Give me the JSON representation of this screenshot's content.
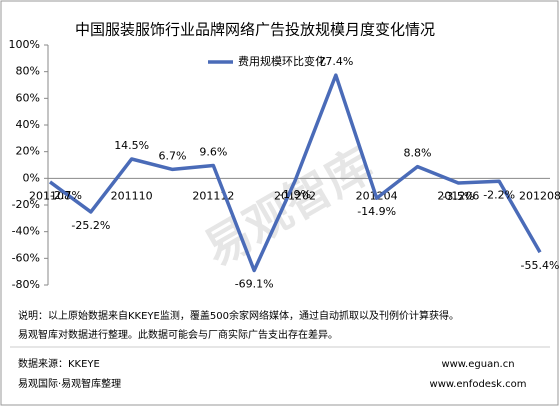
{
  "chart_data": {
    "type": "line",
    "title": "中国服装服饰行业品牌网络广告投放规模月度变化情况",
    "categories": [
      "201108",
      null,
      "201110",
      null,
      "201112",
      null,
      "201202",
      null,
      "201204",
      null,
      "201206",
      null,
      "201208"
    ],
    "series": [
      {
        "name": "费用规模环比变化",
        "color": "#4a6bb8",
        "values": [
          -2.7,
          -25.2,
          14.5,
          6.7,
          9.6,
          -69.1,
          -1.9,
          77.4,
          -14.9,
          8.8,
          -3.5,
          -2.2,
          -55.4
        ],
        "value_labels": [
          "-2.7%",
          "-25.2%",
          "14.5%",
          "6.7%",
          "9.6%",
          "-69.1%",
          "-1.9%",
          "77.4%",
          "-14.9%",
          "8.8%",
          "-3.5%",
          "-2.2%",
          "-55.4%"
        ]
      }
    ],
    "ylim": [
      -80,
      100
    ],
    "yticks": [
      {
        "value": -80,
        "label": "-80%"
      },
      {
        "value": -60,
        "label": "-60%"
      },
      {
        "value": -40,
        "label": "-40%"
      },
      {
        "value": -20,
        "label": "-20%"
      },
      {
        "value": 0,
        "label": "0%"
      },
      {
        "value": 20,
        "label": "20%"
      },
      {
        "value": 40,
        "label": "40%"
      },
      {
        "value": 60,
        "label": "60%"
      },
      {
        "value": 80,
        "label": "80%"
      },
      {
        "value": 100,
        "label": "100%"
      }
    ],
    "grid": false,
    "legend": "top"
  },
  "watermark": "易观智库",
  "notes": [
    "说明：以上原始数据来自KKEYE监测，覆盖500余家网络媒体，通过自动抓取以及刊例价计算获得。",
    "易观智库对数据进行整理。此数据可能会与厂商实际广告支出存在差异。"
  ],
  "source": [
    "数据来源：KKEYE",
    "易观国际·易观智库整理"
  ],
  "urls": [
    "www.eguan.cn",
    "www.enfodesk.com"
  ]
}
